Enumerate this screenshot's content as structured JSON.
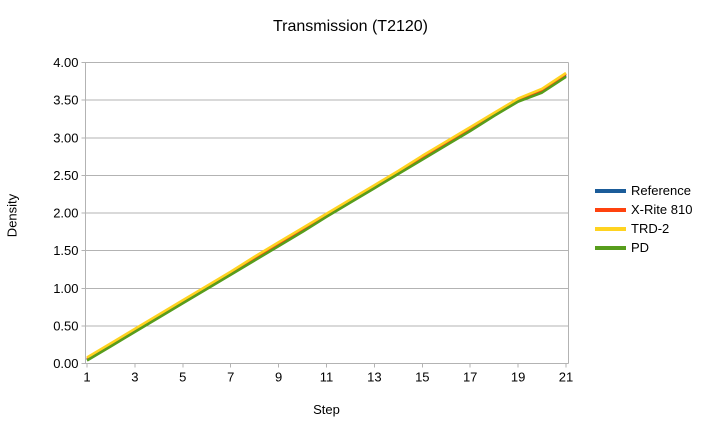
{
  "chart_data": {
    "type": "line",
    "title": "Transmission (T2120)",
    "xlabel": "Step",
    "ylabel": "Density",
    "x": [
      1,
      2,
      3,
      4,
      5,
      6,
      7,
      8,
      9,
      10,
      11,
      12,
      13,
      14,
      15,
      16,
      17,
      18,
      19,
      20,
      21
    ],
    "x_tick_labels": [
      1,
      3,
      5,
      7,
      9,
      11,
      13,
      15,
      17,
      19,
      21
    ],
    "ylim": [
      0,
      4
    ],
    "ytick_step": 0.5,
    "grid": "horizontal",
    "legend_position": "right",
    "colors": {
      "grid": "#b3b3b3",
      "axis": "#b3b3b3",
      "text": "#000000"
    },
    "series": [
      {
        "name": "Reference",
        "color": "#1b5c99",
        "values": [
          0.05,
          0.24,
          0.43,
          0.62,
          0.81,
          1.0,
          1.19,
          1.39,
          1.58,
          1.77,
          1.96,
          2.15,
          2.34,
          2.53,
          2.72,
          2.92,
          3.11,
          3.3,
          3.49,
          3.62,
          3.83
        ]
      },
      {
        "name": "X-Rite 810",
        "color": "#ff420e",
        "values": [
          0.06,
          0.25,
          0.45,
          0.64,
          0.83,
          1.02,
          1.21,
          1.4,
          1.59,
          1.79,
          1.98,
          2.17,
          2.36,
          2.55,
          2.74,
          2.93,
          3.12,
          3.32,
          3.51,
          3.63,
          3.85
        ]
      },
      {
        "name": "TRD-2",
        "color": "#ffd320",
        "values": [
          0.08,
          0.27,
          0.46,
          0.65,
          0.84,
          1.03,
          1.22,
          1.42,
          1.61,
          1.8,
          1.99,
          2.18,
          2.37,
          2.56,
          2.76,
          2.95,
          3.14,
          3.33,
          3.52,
          3.65,
          3.86
        ]
      },
      {
        "name": "PD",
        "color": "#579d1c",
        "values": [
          0.04,
          0.23,
          0.42,
          0.61,
          0.8,
          0.99,
          1.18,
          1.37,
          1.56,
          1.75,
          1.95,
          2.14,
          2.33,
          2.52,
          2.71,
          2.9,
          3.09,
          3.29,
          3.48,
          3.6,
          3.81
        ]
      }
    ]
  }
}
